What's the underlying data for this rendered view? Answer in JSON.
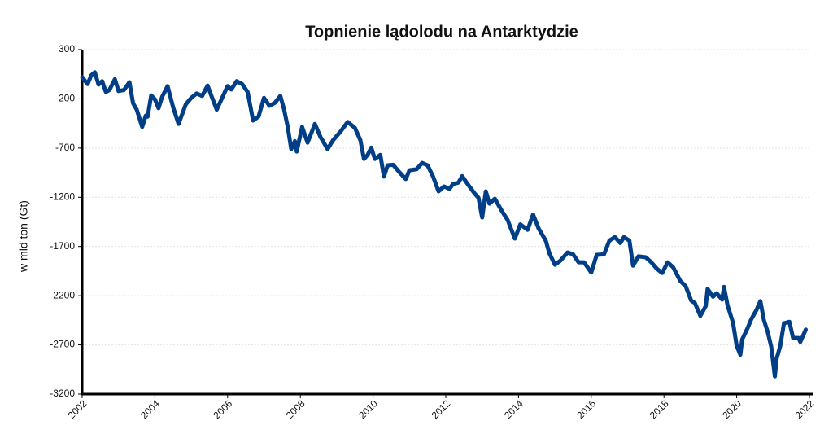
{
  "chart_data": {
    "type": "line",
    "title": "Topnienie lądolodu na Antarktydzie",
    "y_label": "w mld ton (Gt)",
    "color": "#003f87",
    "grid": true,
    "xlim": [
      2002,
      2022
    ],
    "xticks": [
      2002,
      2004,
      2006,
      2008,
      2010,
      2012,
      2014,
      2016,
      2018,
      2020,
      2022
    ],
    "ylim": [
      -3200,
      300
    ],
    "yticks": [
      300,
      -200,
      -700,
      -1200,
      -1700,
      -2200,
      -2700,
      -3200
    ],
    "x": [
      2002.0,
      2002.15,
      2002.25,
      2002.35,
      2002.45,
      2002.55,
      2002.65,
      2002.75,
      2002.9,
      2003.0,
      2003.15,
      2003.3,
      2003.4,
      2003.5,
      2003.65,
      2003.75,
      2003.8,
      2003.9,
      2004.0,
      2004.1,
      2004.2,
      2004.35,
      2004.5,
      2004.65,
      2004.85,
      2005.0,
      2005.15,
      2005.3,
      2005.45,
      2005.55,
      2005.7,
      2005.85,
      2006.0,
      2006.1,
      2006.25,
      2006.4,
      2006.55,
      2006.7,
      2006.85,
      2007.0,
      2007.15,
      2007.3,
      2007.45,
      2007.55,
      2007.65,
      2007.75,
      2007.85,
      2007.9,
      2008.05,
      2008.2,
      2008.4,
      2008.55,
      2008.75,
      2008.9,
      2009.1,
      2009.3,
      2009.5,
      2009.65,
      2009.75,
      2009.85,
      2009.95,
      2010.05,
      2010.2,
      2010.3,
      2010.4,
      2010.55,
      2010.7,
      2010.9,
      2011.0,
      2011.2,
      2011.35,
      2011.5,
      2011.65,
      2011.8,
      2011.95,
      2012.1,
      2012.2,
      2012.35,
      2012.45,
      2012.6,
      2012.8,
      2012.9,
      2013.0,
      2013.1,
      2013.2,
      2013.35,
      2013.55,
      2013.7,
      2013.9,
      2014.05,
      2014.25,
      2014.4,
      2014.55,
      2014.75,
      2014.85,
      2015.0,
      2015.15,
      2015.35,
      2015.5,
      2015.65,
      2015.8,
      2016.0,
      2016.15,
      2016.35,
      2016.5,
      2016.65,
      2016.8,
      2016.9,
      2017.05,
      2017.15,
      2017.3,
      2017.5,
      2017.65,
      2017.8,
      2017.95,
      2018.1,
      2018.25,
      2018.45,
      2018.6,
      2018.75,
      2018.85,
      2019.0,
      2019.15,
      2019.2,
      2019.35,
      2019.45,
      2019.6,
      2019.65,
      2019.75,
      2019.9,
      2020.0,
      2020.1,
      2020.15,
      2020.3,
      2020.4,
      2020.55,
      2020.65,
      2020.75,
      2020.85,
      2020.95,
      2021.05,
      2021.1,
      2021.2,
      2021.3,
      2021.45,
      2021.55,
      2021.7,
      2021.75,
      2021.9
    ],
    "values": [
      20,
      -50,
      40,
      70,
      -55,
      -20,
      -130,
      -110,
      0,
      -120,
      -110,
      -30,
      -245,
      -310,
      -485,
      -370,
      -380,
      -165,
      -205,
      -295,
      -180,
      -70,
      -285,
      -455,
      -255,
      -190,
      -145,
      -170,
      -65,
      -165,
      -310,
      -190,
      -70,
      -105,
      -20,
      -50,
      -130,
      -420,
      -380,
      -190,
      -270,
      -240,
      -170,
      -305,
      -480,
      -710,
      -630,
      -735,
      -485,
      -645,
      -455,
      -585,
      -710,
      -620,
      -535,
      -435,
      -495,
      -620,
      -810,
      -770,
      -695,
      -810,
      -770,
      -990,
      -875,
      -870,
      -935,
      -1015,
      -925,
      -915,
      -850,
      -875,
      -990,
      -1140,
      -1090,
      -1115,
      -1065,
      -1050,
      -985,
      -1065,
      -1165,
      -1205,
      -1405,
      -1140,
      -1265,
      -1215,
      -1345,
      -1430,
      -1620,
      -1475,
      -1530,
      -1375,
      -1515,
      -1640,
      -1770,
      -1885,
      -1845,
      -1760,
      -1780,
      -1860,
      -1860,
      -1965,
      -1785,
      -1780,
      -1640,
      -1605,
      -1665,
      -1605,
      -1640,
      -1895,
      -1800,
      -1810,
      -1860,
      -1925,
      -1970,
      -1860,
      -1910,
      -2050,
      -2105,
      -2250,
      -2275,
      -2405,
      -2305,
      -2130,
      -2210,
      -2175,
      -2240,
      -2110,
      -2300,
      -2475,
      -2710,
      -2800,
      -2645,
      -2530,
      -2440,
      -2340,
      -2255,
      -2450,
      -2565,
      -2720,
      -3020,
      -2835,
      -2710,
      -2480,
      -2465,
      -2630,
      -2630,
      -2670,
      -2545
    ]
  }
}
